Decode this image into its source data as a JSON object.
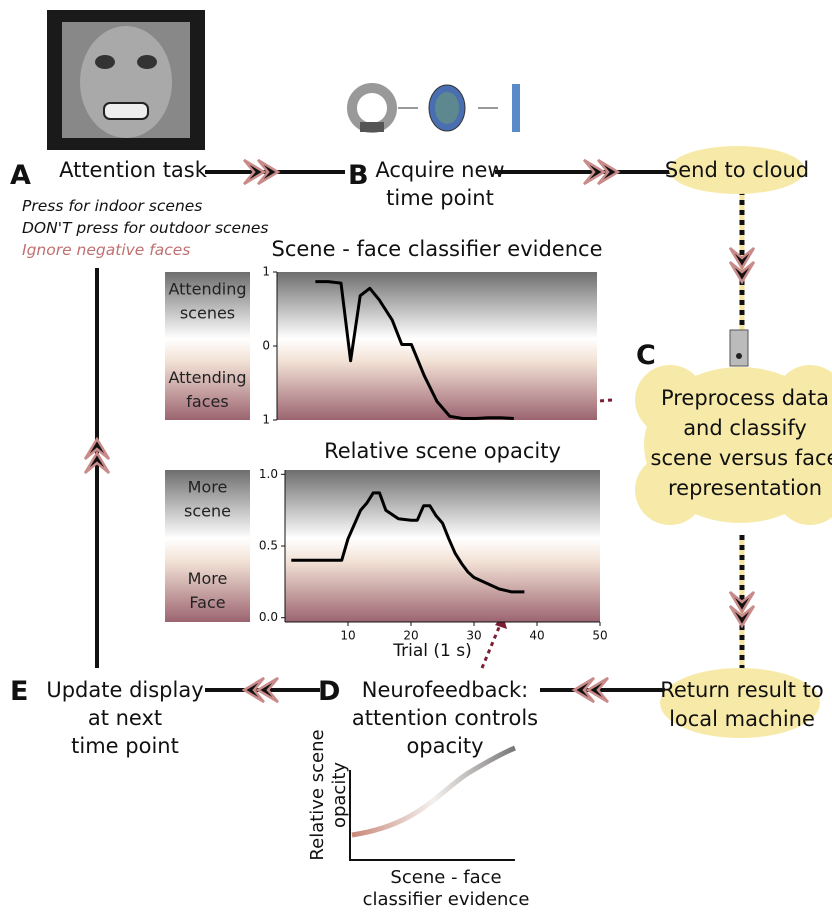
{
  "diagram": {
    "steps": [
      {
        "letter": "A",
        "lines": [
          "Attention task"
        ]
      },
      {
        "letter": "B",
        "lines": [
          "Acquire new",
          "time point"
        ]
      },
      {
        "letter": "C",
        "lines": [
          "Preprocess data",
          "and classify",
          "scene versus face",
          "representation"
        ]
      },
      {
        "letter": "D",
        "lines": [
          "Neurofeedback:",
          "attention controls",
          "opacity"
        ]
      },
      {
        "letter": "E",
        "lines": [
          "Update display",
          "at next",
          "time point"
        ]
      }
    ],
    "instructions": [
      "Press for indoor scenes",
      "DON'T press for outdoor scenes",
      "Ignore negative faces"
    ],
    "cloud_send": "Send to cloud",
    "cloud_return": [
      "Return result to",
      "local machine"
    ],
    "sigmoid": {
      "xlabel": [
        "Scene - face",
        "classifier evidence"
      ],
      "ylabel": [
        "Relative scene",
        "opacity"
      ]
    }
  },
  "chart_data": [
    {
      "type": "line",
      "title": "Scene - face classifier evidence",
      "band_labels": {
        "top": [
          "Attending",
          "scenes"
        ],
        "bottom": [
          "Attending",
          "faces"
        ]
      },
      "x": [
        6,
        8,
        10,
        11.5,
        13,
        14.5,
        16,
        18,
        19.5,
        21,
        23,
        25,
        27,
        29,
        31,
        33,
        35,
        37
      ],
      "series": [
        {
          "color": "#000000",
          "values": [
            0.87,
            0.87,
            0.85,
            -0.2,
            0.68,
            0.78,
            0.62,
            0.35,
            0.02,
            0.02,
            -0.4,
            -0.75,
            -0.95,
            -0.98,
            -0.98,
            -0.97,
            -0.97,
            -0.98
          ]
        }
      ],
      "xlim": [
        0,
        50
      ],
      "ylim": [
        -1,
        1
      ],
      "yticks": [
        1,
        0,
        {
          "value": -1,
          "label": "1"
        }
      ]
    },
    {
      "type": "line",
      "title": "Relative scene opacity",
      "band_labels": {
        "top": [
          "More",
          "scene"
        ],
        "bottom": [
          "More",
          "Face"
        ]
      },
      "x": [
        1,
        9,
        10,
        11,
        12,
        13,
        14,
        15,
        16,
        17,
        18,
        20,
        21,
        22,
        23,
        24,
        25,
        26,
        27,
        28,
        29,
        30,
        32,
        34,
        36,
        38
      ],
      "series": [
        {
          "color": "#000000",
          "values": [
            0.4,
            0.4,
            0.55,
            0.65,
            0.75,
            0.8,
            0.87,
            0.87,
            0.75,
            0.72,
            0.69,
            0.68,
            0.68,
            0.78,
            0.78,
            0.71,
            0.66,
            0.55,
            0.45,
            0.38,
            0.32,
            0.28,
            0.24,
            0.2,
            0.18,
            0.18
          ]
        }
      ],
      "xlim": [
        0,
        50
      ],
      "ylim": [
        -0.03,
        1.03
      ],
      "xticks": [
        10,
        20,
        30,
        40,
        50
      ],
      "yticks": [
        {
          "value": 1,
          "label": "1.0"
        },
        0.5,
        {
          "value": 0,
          "label": "0.0"
        }
      ],
      "xlabel": "Trial (1 s)"
    }
  ]
}
